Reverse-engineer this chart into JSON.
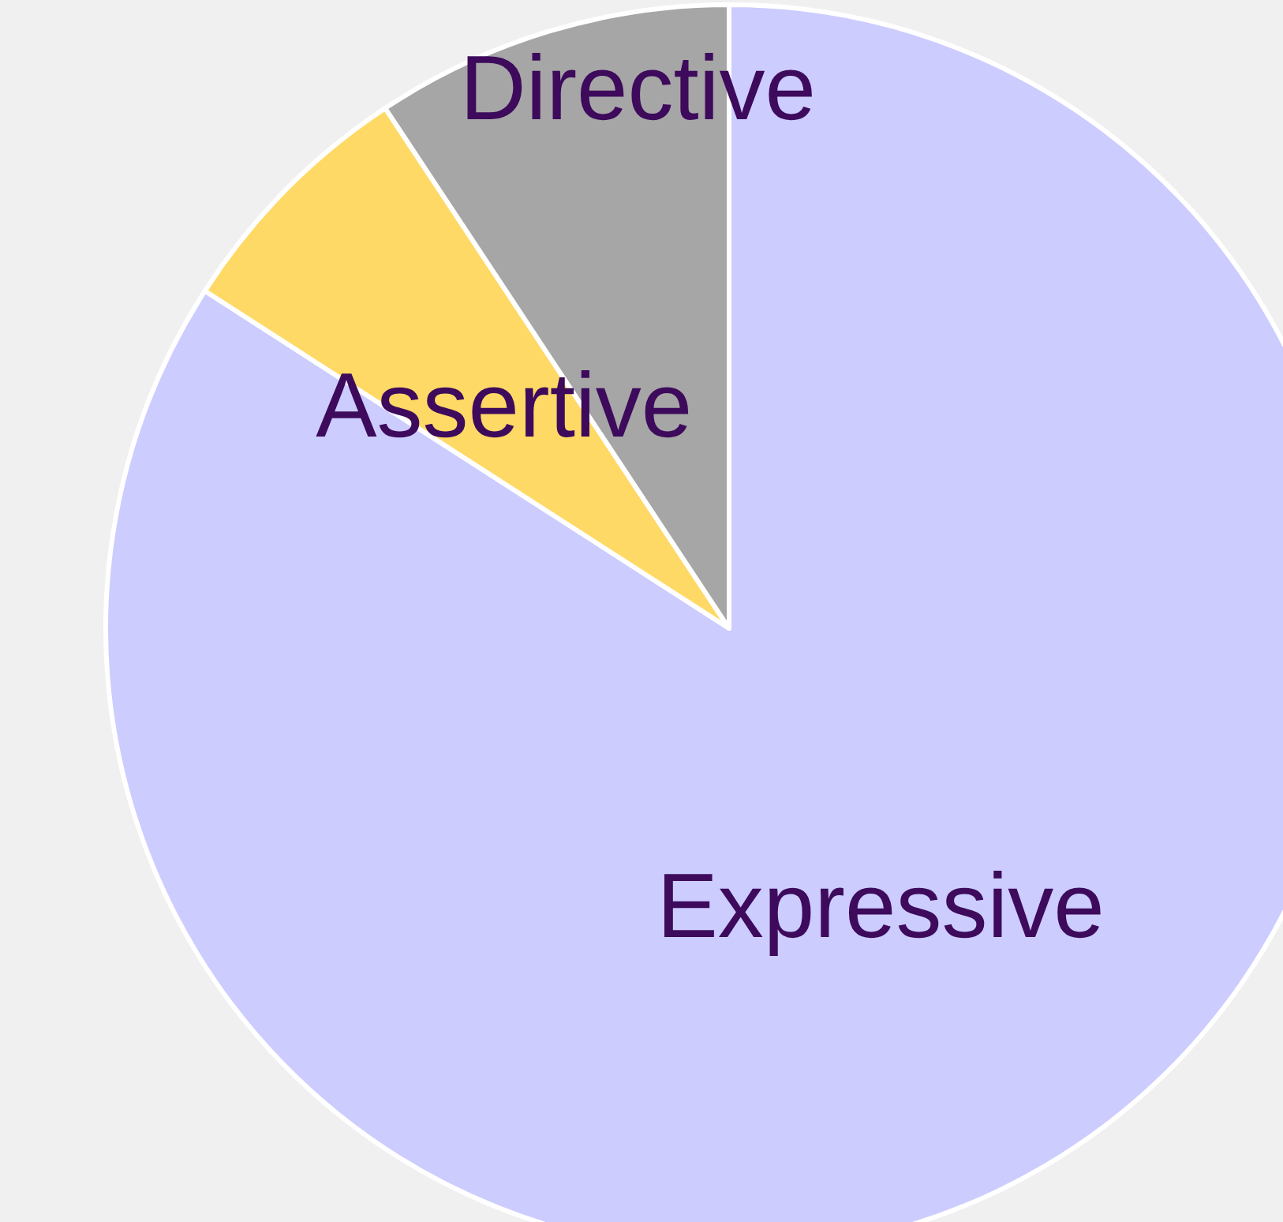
{
  "chart_data": {
    "type": "pie",
    "categories": [
      "Expressive",
      "Assertive",
      "Directive"
    ],
    "values": [
      84.1,
      6.6,
      9.3
    ],
    "colors": [
      "#ccccff",
      "#ffd966",
      "#a6a6a6"
    ],
    "legend": false
  }
}
